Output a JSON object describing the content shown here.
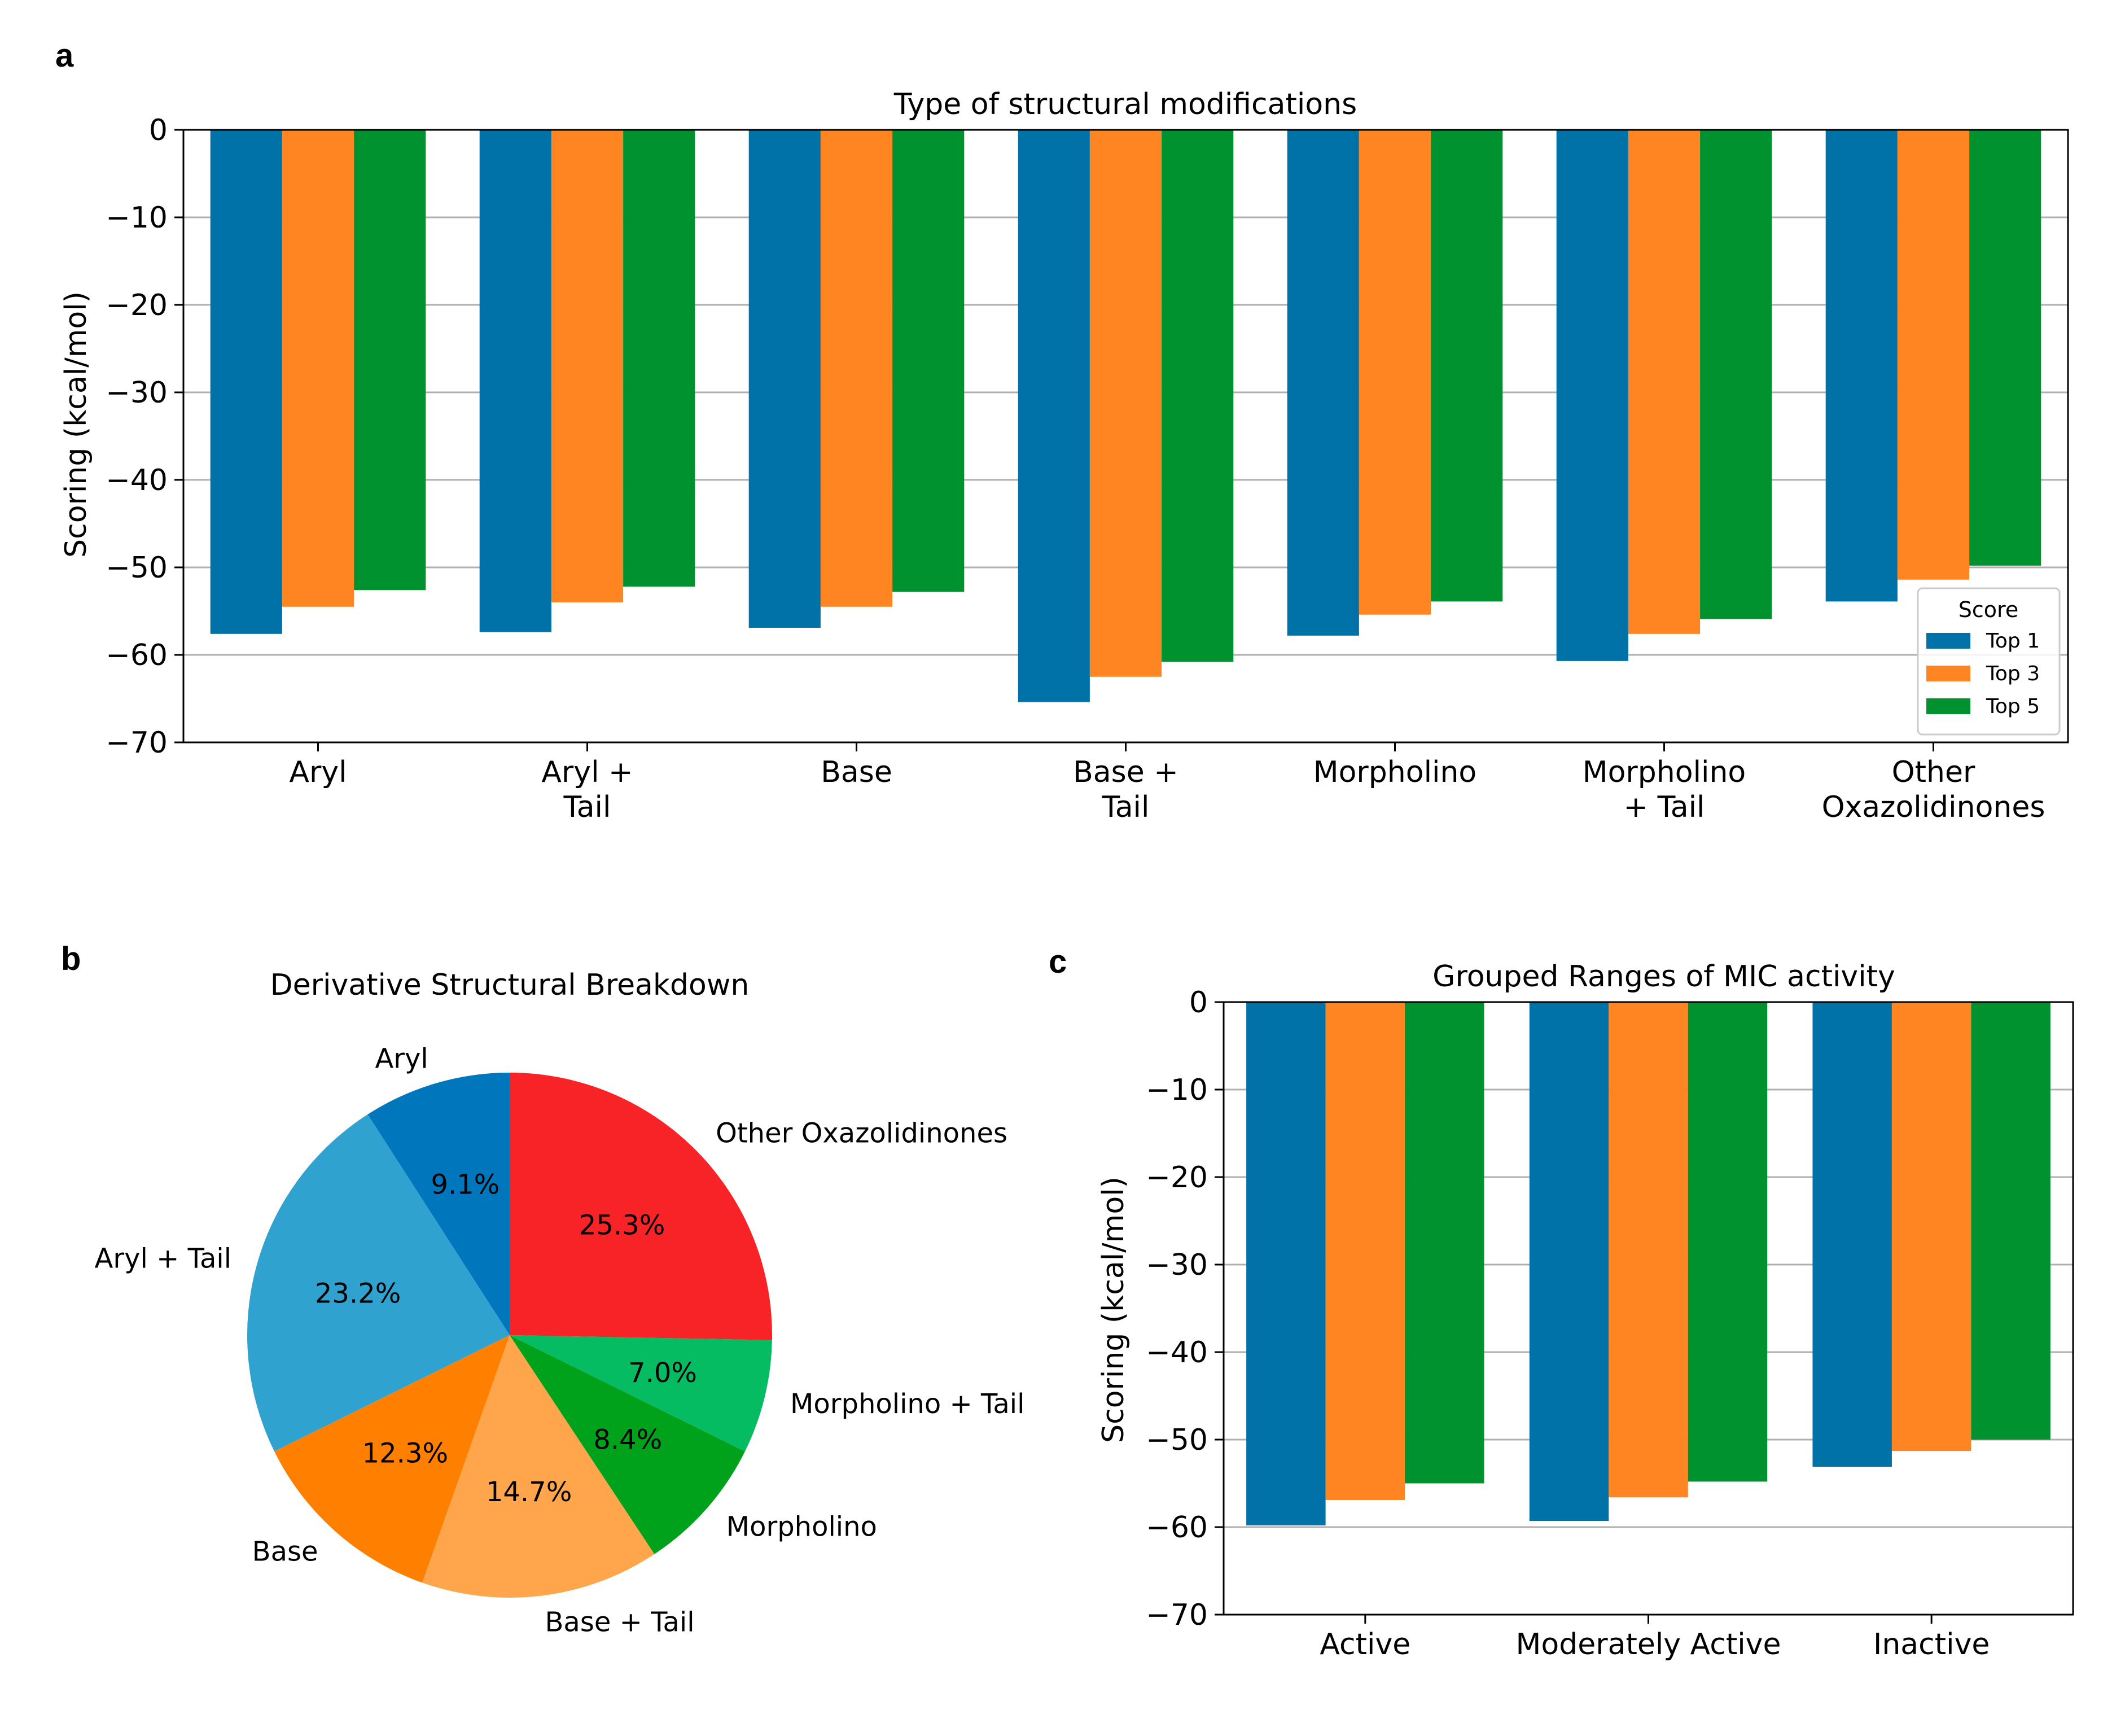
{
  "panels": {
    "a": "a",
    "b": "b",
    "c": "c"
  },
  "colors": {
    "top1": "#0072a8",
    "top3": "#ff8522",
    "top5": "#00922e",
    "grid": "#b0b0b0",
    "pie": [
      "#0077bc",
      "#30a2d0",
      "#ff8000",
      "#ffa64c",
      "#00a21c",
      "#06bc62",
      "#f82326"
    ]
  },
  "chart_data": [
    {
      "id": "a",
      "type": "bar",
      "title": "Type of structural modifications",
      "xlabel": "",
      "ylabel": "Scoring (kcal/mol)",
      "ylim": [
        -70,
        0
      ],
      "yticks": [
        0,
        -10,
        -20,
        -30,
        -40,
        -50,
        -60,
        -70
      ],
      "ytick_labels": [
        "0",
        "−10",
        "−20",
        "−30",
        "−40",
        "−50",
        "−60",
        "−70"
      ],
      "grid": "horizontal",
      "categories": [
        [
          "Aryl"
        ],
        [
          "Aryl +",
          "Tail"
        ],
        [
          "Base"
        ],
        [
          "Base +",
          "Tail"
        ],
        [
          "Morpholino"
        ],
        [
          "Morpholino",
          "+ Tail"
        ],
        [
          "Other",
          "Oxazolidinones"
        ]
      ],
      "legend": {
        "title": "Score",
        "position": "lower-right",
        "entries": [
          "Top 1",
          "Top 3",
          "Top 5"
        ]
      },
      "series": [
        {
          "name": "Top 1",
          "values": [
            -57.6,
            -57.4,
            -56.9,
            -65.4,
            -57.8,
            -60.7,
            -53.9
          ]
        },
        {
          "name": "Top 3",
          "values": [
            -54.5,
            -54.0,
            -54.5,
            -62.5,
            -55.4,
            -57.6,
            -51.4
          ]
        },
        {
          "name": "Top 5",
          "values": [
            -52.6,
            -52.2,
            -52.8,
            -60.8,
            -53.9,
            -55.9,
            -49.8
          ]
        }
      ]
    },
    {
      "id": "b",
      "type": "pie",
      "title": "Derivative Structural Breakdown",
      "start_angle_deg": 90,
      "direction": "counterclockwise",
      "slices": [
        {
          "label": "Aryl",
          "pct_label": "9.1%",
          "value": 9.1
        },
        {
          "label": "Aryl + Tail",
          "pct_label": "23.2%",
          "value": 23.2
        },
        {
          "label": "Base",
          "pct_label": "12.3%",
          "value": 12.3
        },
        {
          "label": "Base + Tail",
          "pct_label": "14.7%",
          "value": 14.7
        },
        {
          "label": "Morpholino",
          "pct_label": "8.4%",
          "value": 8.4
        },
        {
          "label": "Morpholino + Tail",
          "pct_label": "7.0%",
          "value": 7.0
        },
        {
          "label": "Other Oxazolidinones",
          "pct_label": "25.3%",
          "value": 25.3
        }
      ]
    },
    {
      "id": "c",
      "type": "bar",
      "title": "Grouped Ranges of MIC activity",
      "xlabel": "",
      "ylabel": "Scoring (kcal/mol)",
      "ylim": [
        -70,
        0
      ],
      "yticks": [
        0,
        -10,
        -20,
        -30,
        -40,
        -50,
        -60,
        -70
      ],
      "ytick_labels": [
        "0",
        "−10",
        "−20",
        "−30",
        "−40",
        "−50",
        "−60",
        "−70"
      ],
      "grid": "horizontal",
      "categories": [
        [
          "Active"
        ],
        [
          "Moderately Active"
        ],
        [
          "Inactive"
        ]
      ],
      "series": [
        {
          "name": "Top 1",
          "values": [
            -59.8,
            -59.3,
            -53.1
          ]
        },
        {
          "name": "Top 3",
          "values": [
            -56.9,
            -56.6,
            -51.3
          ]
        },
        {
          "name": "Top 5",
          "values": [
            -55.0,
            -54.8,
            -50.0
          ]
        }
      ]
    }
  ]
}
